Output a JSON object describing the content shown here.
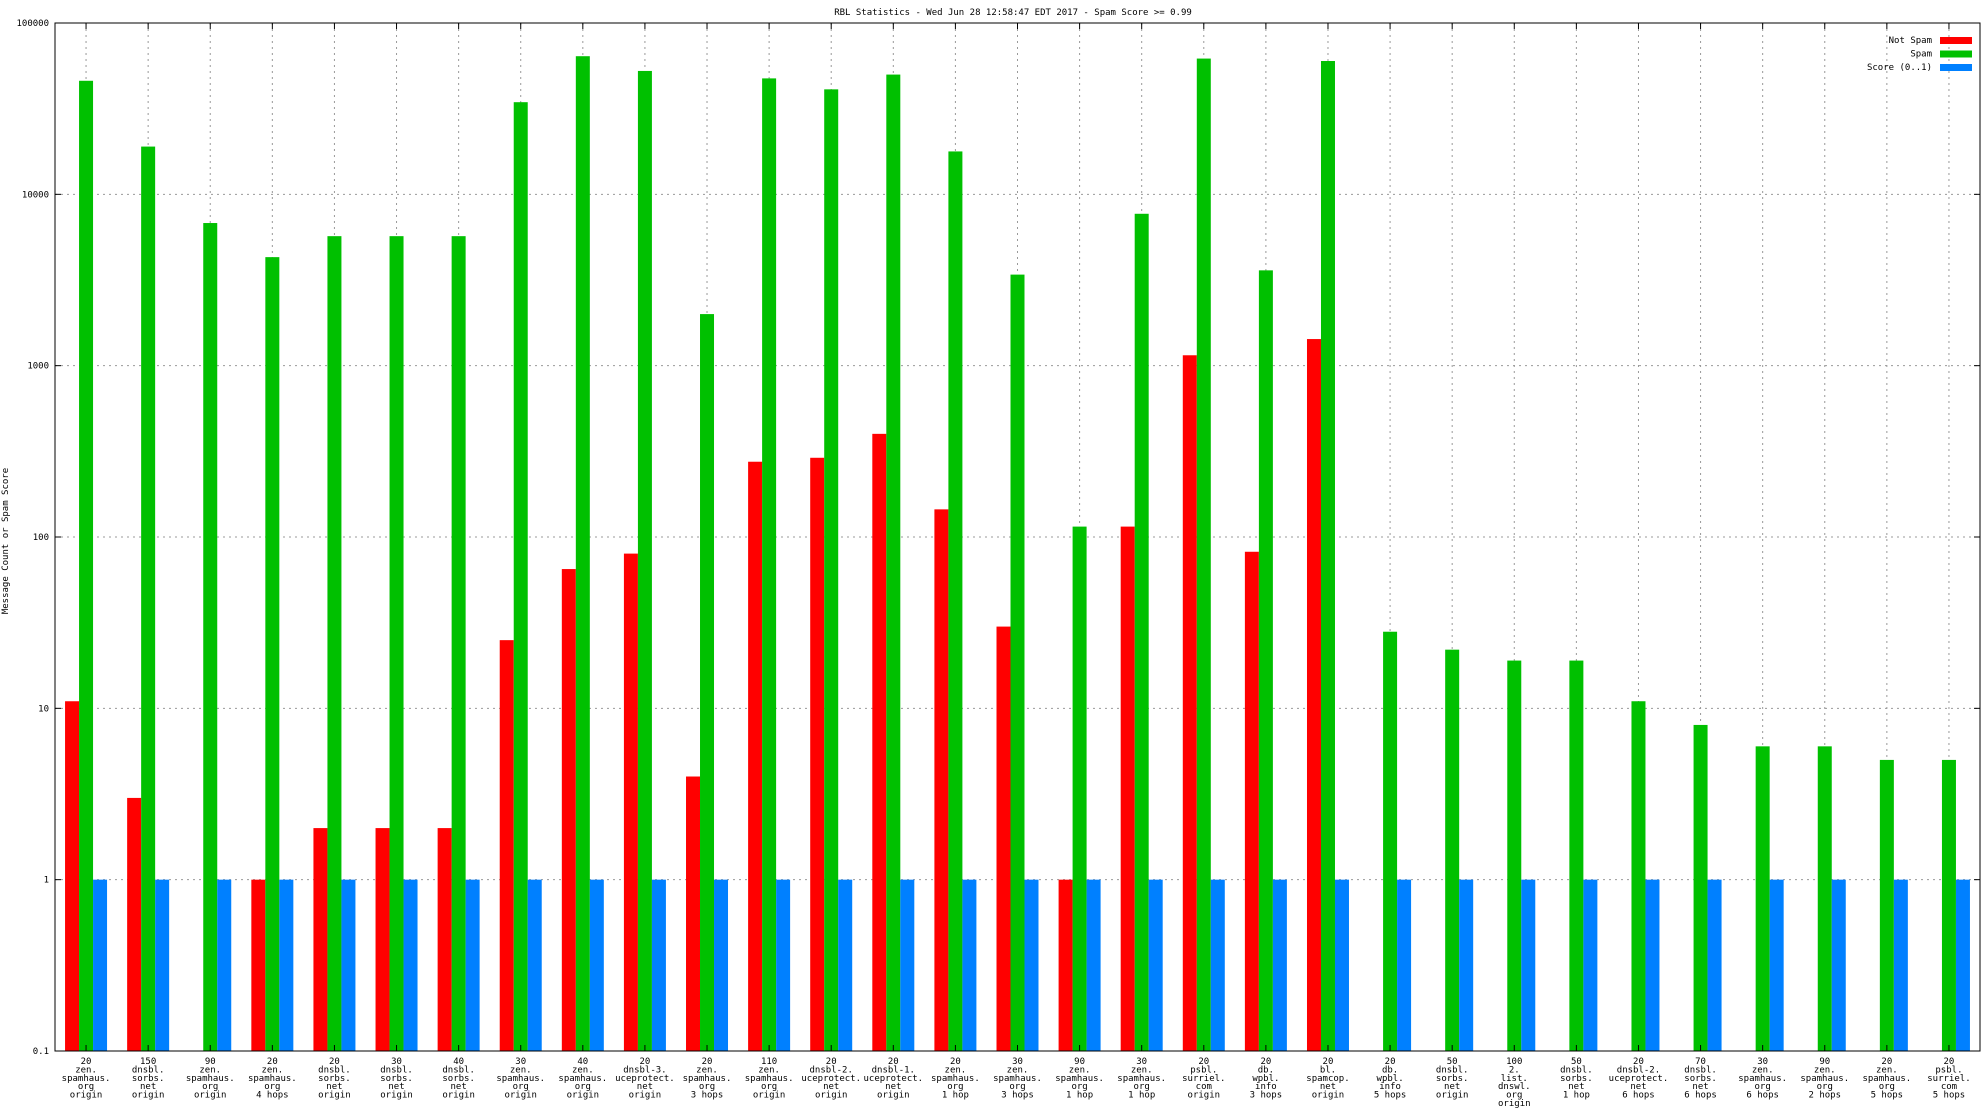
{
  "chart_data": {
    "type": "bar",
    "title": "RBL Statistics - Wed Jun 28 12:58:47 EDT 2017 - Spam Score >= 0.99",
    "ylabel": "Message Count or Spam Score",
    "xlabel": "",
    "yscale": "log",
    "ylim": [
      0.1,
      100000
    ],
    "yticks": [
      "0.1",
      "1",
      "10",
      "100",
      "1000",
      "10000",
      "100000"
    ],
    "grid": true,
    "legend_position": "top-right",
    "categories": [
      [
        "20",
        "zen.",
        "spamhaus.",
        "org",
        "origin"
      ],
      [
        "150",
        "dnsbl.",
        "sorbs.",
        "net",
        "origin"
      ],
      [
        "90",
        "zen.",
        "spamhaus.",
        "org",
        "origin"
      ],
      [
        "20",
        "zen.",
        "spamhaus.",
        "org",
        "4 hops"
      ],
      [
        "20",
        "dnsbl.",
        "sorbs.",
        "net",
        "origin"
      ],
      [
        "30",
        "dnsbl.",
        "sorbs.",
        "net",
        "origin"
      ],
      [
        "40",
        "dnsbl.",
        "sorbs.",
        "net",
        "origin"
      ],
      [
        "30",
        "zen.",
        "spamhaus.",
        "org",
        "origin"
      ],
      [
        "40",
        "zen.",
        "spamhaus.",
        "org",
        "origin"
      ],
      [
        "20",
        "dnsbl-3.",
        "uceprotect.",
        "net",
        "origin"
      ],
      [
        "20",
        "zen.",
        "spamhaus.",
        "org",
        "3 hops"
      ],
      [
        "110",
        "zen.",
        "spamhaus.",
        "org",
        "origin"
      ],
      [
        "20",
        "dnsbl-2.",
        "uceprotect.",
        "net",
        "origin"
      ],
      [
        "20",
        "dnsbl-1.",
        "uceprotect.",
        "net",
        "origin"
      ],
      [
        "20",
        "zen.",
        "spamhaus.",
        "org",
        "1 hop"
      ],
      [
        "30",
        "zen.",
        "spamhaus.",
        "org",
        "3 hops"
      ],
      [
        "90",
        "zen.",
        "spamhaus.",
        "org",
        "1 hop"
      ],
      [
        "30",
        "zen.",
        "spamhaus.",
        "org",
        "1 hop"
      ],
      [
        "20",
        "psbl.",
        "surriel.",
        "com",
        "origin"
      ],
      [
        "20",
        "db.",
        "wpbl.",
        "info",
        "3 hops"
      ],
      [
        "20",
        "bl.",
        "spamcop.",
        "net",
        "origin"
      ],
      [
        "20",
        "db.",
        "wpbl.",
        "info",
        "5 hops"
      ],
      [
        "50",
        "dnsbl.",
        "sorbs.",
        "net",
        "origin"
      ],
      [
        "100",
        "2.",
        "list.",
        "dnswl.",
        "org",
        "origin"
      ],
      [
        "50",
        "dnsbl.",
        "sorbs.",
        "net",
        "1 hop"
      ],
      [
        "20",
        "dnsbl-2.",
        "uceprotect.",
        "net",
        "6 hops"
      ],
      [
        "70",
        "dnsbl.",
        "sorbs.",
        "net",
        "6 hops"
      ],
      [
        "30",
        "zen.",
        "spamhaus.",
        "org",
        "6 hops"
      ],
      [
        "90",
        "zen.",
        "spamhaus.",
        "org",
        "2 hops"
      ],
      [
        "20",
        "zen.",
        "spamhaus.",
        "org",
        "5 hops"
      ],
      [
        "20",
        "psbl.",
        "surriel.",
        "com",
        "5 hops"
      ]
    ],
    "series": [
      {
        "name": "Not Spam",
        "color": "#ff0000",
        "values": [
          11,
          3,
          null,
          1,
          2,
          2,
          2,
          25,
          65,
          80,
          4,
          275,
          290,
          400,
          145,
          30,
          1,
          115,
          1150,
          82,
          1430,
          null,
          null,
          null,
          null,
          null,
          null,
          null,
          null,
          null,
          null
        ]
      },
      {
        "name": "Spam",
        "color": "#00c000",
        "values": [
          46000,
          19000,
          6800,
          4300,
          5700,
          5700,
          5700,
          34500,
          64000,
          52500,
          2000,
          47500,
          41000,
          50000,
          17800,
          3400,
          115,
          7700,
          62000,
          3600,
          60000,
          28,
          22,
          19,
          19,
          11,
          8,
          6,
          6,
          5,
          5
        ]
      },
      {
        "name": "Score (0..1)",
        "color": "#0080ff",
        "values": [
          1,
          1,
          1,
          1,
          1,
          1,
          1,
          1,
          1,
          1,
          1,
          1,
          1,
          1,
          1,
          1,
          1,
          1,
          1,
          1,
          1,
          1,
          1,
          1,
          1,
          1,
          1,
          1,
          1,
          1,
          1
        ]
      }
    ]
  }
}
